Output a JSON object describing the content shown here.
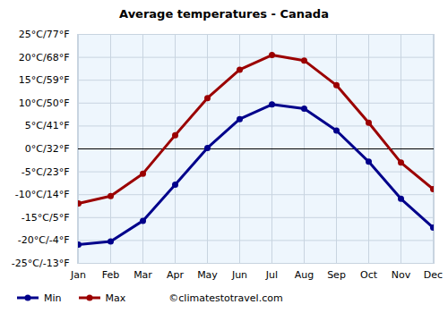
{
  "chart_data": {
    "type": "line",
    "title": "Average temperatures - Canada",
    "caption": "©climatestotravel.com",
    "categories": [
      "Jan",
      "Feb",
      "Mar",
      "Apr",
      "May",
      "Jun",
      "Jul",
      "Aug",
      "Sep",
      "Oct",
      "Nov",
      "Dec"
    ],
    "series": [
      {
        "name": "Min",
        "color": "#00008b",
        "marker": "circle",
        "values": [
          -20.9,
          -20.2,
          -15.7,
          -7.8,
          0.2,
          6.5,
          9.7,
          8.8,
          4.0,
          -2.8,
          -10.9,
          -17.2
        ]
      },
      {
        "name": "Max",
        "color": "#9b0000",
        "marker": "circle",
        "values": [
          -11.9,
          -10.3,
          -5.4,
          3.0,
          11.1,
          17.3,
          20.5,
          19.3,
          13.9,
          5.7,
          -3.0,
          -8.8
        ]
      }
    ],
    "ylim": [
      -25,
      25
    ],
    "yticks": [
      {
        "value": -25,
        "label": "-25°C/-13°F"
      },
      {
        "value": -20,
        "label": "-20°C/-4°F"
      },
      {
        "value": -15,
        "label": "-15°C/5°F"
      },
      {
        "value": -10,
        "label": "-10°C/14°F"
      },
      {
        "value": -5,
        "label": "-5°C/23°F"
      },
      {
        "value": 0,
        "label": "0°C/32°F"
      },
      {
        "value": 5,
        "label": "5°C/41°F"
      },
      {
        "value": 10,
        "label": "10°C/50°F"
      },
      {
        "value": 15,
        "label": "15°C/59°F"
      },
      {
        "value": 20,
        "label": "20°C/68°F"
      },
      {
        "value": 25,
        "label": "25°C/77°F"
      }
    ],
    "grid": true,
    "legend": "bottom"
  }
}
